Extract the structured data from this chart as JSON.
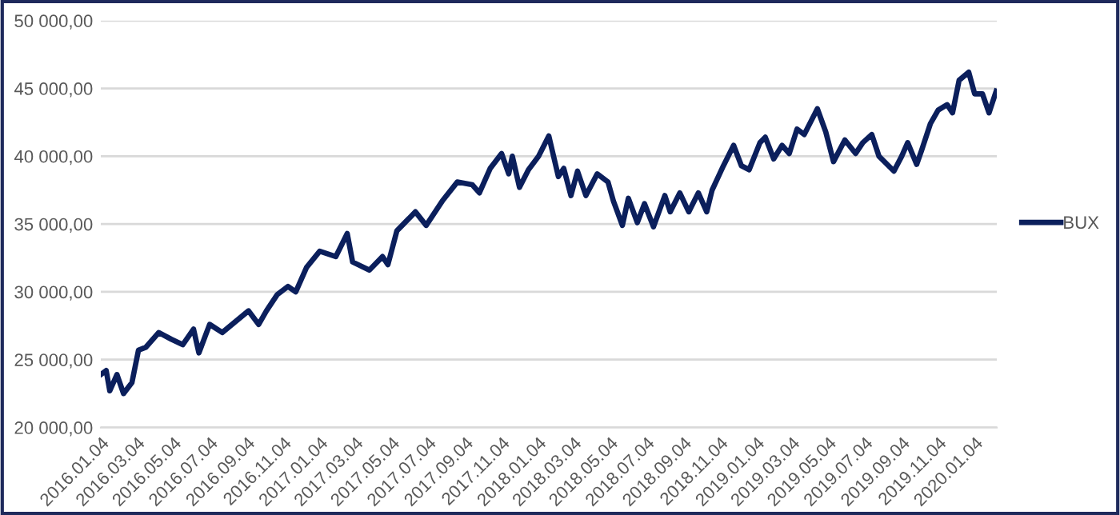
{
  "chart_data": {
    "type": "line",
    "x": [
      "2016-01-04",
      "2016-01-13",
      "2016-01-19",
      "2016-01-31",
      "2016-02-11",
      "2016-02-25",
      "2016-03-07",
      "2016-03-19",
      "2016-04-10",
      "2016-05-01",
      "2016-05-20",
      "2016-06-07",
      "2016-06-16",
      "2016-07-04",
      "2016-07-25",
      "2016-09-07",
      "2016-09-24",
      "2016-10-07",
      "2016-10-25",
      "2016-11-12",
      "2016-11-25",
      "2016-12-13",
      "2017-01-04",
      "2017-01-31",
      "2017-02-19",
      "2017-02-28",
      "2017-03-28",
      "2017-04-19",
      "2017-04-28",
      "2017-05-13",
      "2017-06-13",
      "2017-07-01",
      "2017-07-28",
      "2017-08-22",
      "2017-09-16",
      "2017-09-28",
      "2017-10-16",
      "2017-11-04",
      "2017-11-16",
      "2017-11-22",
      "2017-12-04",
      "2017-12-19",
      "2018-01-05",
      "2018-01-22",
      "2018-02-07",
      "2018-02-16",
      "2018-02-28",
      "2018-03-11",
      "2018-03-25",
      "2018-04-13",
      "2018-05-01",
      "2018-05-10",
      "2018-05-25",
      "2018-06-04",
      "2018-06-19",
      "2018-07-01",
      "2018-07-16",
      "2018-08-04",
      "2018-08-13",
      "2018-08-29",
      "2018-09-13",
      "2018-09-29",
      "2018-10-13",
      "2018-10-22",
      "2018-11-10",
      "2018-11-27",
      "2018-12-10",
      "2018-12-23",
      "2019-01-10",
      "2019-01-19",
      "2019-02-02",
      "2019-02-16",
      "2019-02-28",
      "2019-03-13",
      "2019-03-25",
      "2019-04-16",
      "2019-04-30",
      "2019-05-13",
      "2019-06-01",
      "2019-06-19",
      "2019-07-01",
      "2019-07-16",
      "2019-07-28",
      "2019-08-22",
      "2019-09-04",
      "2019-09-14",
      "2019-09-29",
      "2019-10-07",
      "2019-10-22",
      "2019-11-04",
      "2019-11-19",
      "2019-11-28",
      "2019-12-09",
      "2019-12-25",
      "2020-01-04",
      "2020-01-17",
      "2020-01-28",
      "2020-02-09"
    ],
    "series": [
      {
        "name": "BUX",
        "color": "#0b1f5c",
        "values": [
          23900,
          24200,
          22700,
          23900,
          22500,
          23300,
          25700,
          25900,
          27000,
          26500,
          26100,
          27250,
          25500,
          27600,
          27000,
          28600,
          27600,
          28600,
          29800,
          30400,
          30000,
          31800,
          33000,
          32600,
          34300,
          32200,
          31600,
          32600,
          32000,
          34500,
          35900,
          34900,
          36700,
          38100,
          37900,
          37300,
          39100,
          40200,
          38700,
          40000,
          37700,
          39000,
          40000,
          41500,
          38500,
          39100,
          37100,
          38900,
          37100,
          38700,
          38100,
          36700,
          34900,
          36900,
          35100,
          36500,
          34800,
          37100,
          35900,
          37300,
          35900,
          37300,
          35900,
          37500,
          39300,
          40800,
          39300,
          39000,
          41000,
          41400,
          39800,
          40800,
          40200,
          42000,
          41600,
          43500,
          41800,
          39600,
          41200,
          40200,
          41000,
          41600,
          40000,
          38900,
          40000,
          41000,
          39400,
          40400,
          42400,
          43400,
          43800,
          43200,
          45600,
          46200,
          44600,
          44600,
          43200,
          44800
        ]
      }
    ],
    "xlim": [
      "2016-01-04",
      "2020-02-10"
    ],
    "xticks": [
      {
        "value": "2016-01-04",
        "label": "2016.01.04"
      },
      {
        "value": "2016-03-04",
        "label": "2016.03.04"
      },
      {
        "value": "2016-05-04",
        "label": "2016.05.04"
      },
      {
        "value": "2016-07-04",
        "label": "2016.07.04"
      },
      {
        "value": "2016-09-04",
        "label": "2016.09.04"
      },
      {
        "value": "2016-11-04",
        "label": "2016.11.04"
      },
      {
        "value": "2017-01-04",
        "label": "2017.01.04"
      },
      {
        "value": "2017-03-04",
        "label": "2017.03.04"
      },
      {
        "value": "2017-05-04",
        "label": "2017.05.04"
      },
      {
        "value": "2017-07-04",
        "label": "2017.07.04"
      },
      {
        "value": "2017-09-04",
        "label": "2017.09.04"
      },
      {
        "value": "2017-11-04",
        "label": "2017.11.04"
      },
      {
        "value": "2018-01-04",
        "label": "2018.01.04"
      },
      {
        "value": "2018-03-04",
        "label": "2018.03.04"
      },
      {
        "value": "2018-05-04",
        "label": "2018.05.04"
      },
      {
        "value": "2018-07-04",
        "label": "2018.07.04"
      },
      {
        "value": "2018-09-04",
        "label": "2018.09.04"
      },
      {
        "value": "2018-11-04",
        "label": "2018.11.04"
      },
      {
        "value": "2019-01-04",
        "label": "2019.01.04"
      },
      {
        "value": "2019-03-04",
        "label": "2019.03.04"
      },
      {
        "value": "2019-05-04",
        "label": "2019.05.04"
      },
      {
        "value": "2019-07-04",
        "label": "2019.07.04"
      },
      {
        "value": "2019-09-04",
        "label": "2019.09.04"
      },
      {
        "value": "2019-11-04",
        "label": "2019.11.04"
      },
      {
        "value": "2020-01-04",
        "label": "2020.01.04"
      }
    ],
    "ylim": [
      20000,
      50000
    ],
    "yticks": [
      {
        "value": 20000,
        "label": "20 000,00"
      },
      {
        "value": 25000,
        "label": "25 000,00"
      },
      {
        "value": 30000,
        "label": "30 000,00"
      },
      {
        "value": 35000,
        "label": "35 000,00"
      },
      {
        "value": 40000,
        "label": "40 000,00"
      },
      {
        "value": 45000,
        "label": "45 000,00"
      },
      {
        "value": 50000,
        "label": "50 000,00"
      }
    ],
    "grid": "y",
    "legend": "right",
    "marker": "none",
    "line_style": "solid"
  }
}
